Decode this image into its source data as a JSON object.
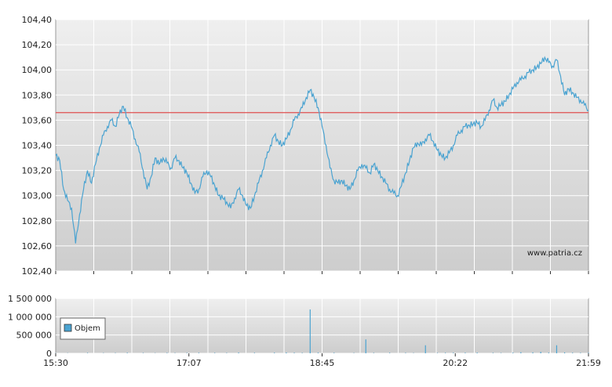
{
  "chart_data": [
    {
      "type": "line",
      "title": "",
      "xlabel": "",
      "ylabel": "",
      "ylim": [
        102.4,
        104.4
      ],
      "y_ticks": [
        "104,40",
        "104,20",
        "104,00",
        "103,80",
        "103,60",
        "103,40",
        "103,20",
        "103,00",
        "102,80",
        "102,60",
        "102,40"
      ],
      "reference_line": {
        "value": 103.66,
        "color": "#e05050"
      },
      "watermark": "www.patria.cz",
      "series": [
        {
          "color": "#4aa3d1",
          "points": [
            [
              0,
              103.32
            ],
            [
              1,
              103.28
            ],
            [
              2,
              103.05
            ],
            [
              3,
              102.96
            ],
            [
              4,
              102.9
            ],
            [
              5,
              102.62
            ],
            [
              6,
              102.85
            ],
            [
              7,
              103.05
            ],
            [
              8,
              103.2
            ],
            [
              9,
              103.1
            ],
            [
              10,
              103.25
            ],
            [
              11,
              103.38
            ],
            [
              12,
              103.48
            ],
            [
              13,
              103.55
            ],
            [
              14,
              103.6
            ],
            [
              15,
              103.55
            ],
            [
              16,
              103.65
            ],
            [
              17,
              103.71
            ],
            [
              18,
              103.62
            ],
            [
              19,
              103.55
            ],
            [
              20,
              103.45
            ],
            [
              21,
              103.35
            ],
            [
              22,
              103.2
            ],
            [
              23,
              103.05
            ],
            [
              24,
              103.15
            ],
            [
              25,
              103.3
            ],
            [
              26,
              103.25
            ],
            [
              27,
              103.3
            ],
            [
              28,
              103.26
            ],
            [
              29,
              103.22
            ],
            [
              30,
              103.3
            ],
            [
              31,
              103.28
            ],
            [
              32,
              103.22
            ],
            [
              33,
              103.18
            ],
            [
              34,
              103.1
            ],
            [
              35,
              103.02
            ],
            [
              36,
              103.05
            ],
            [
              37,
              103.15
            ],
            [
              38,
              103.2
            ],
            [
              39,
              103.15
            ],
            [
              40,
              103.08
            ],
            [
              41,
              103.0
            ],
            [
              42,
              102.98
            ],
            [
              43,
              102.95
            ],
            [
              44,
              102.9
            ],
            [
              45,
              102.98
            ],
            [
              46,
              103.05
            ],
            [
              47,
              103.0
            ],
            [
              48,
              102.92
            ],
            [
              49,
              102.9
            ],
            [
              50,
              103.0
            ],
            [
              51,
              103.1
            ],
            [
              52,
              103.2
            ],
            [
              53,
              103.3
            ],
            [
              54,
              103.4
            ],
            [
              55,
              103.48
            ],
            [
              56,
              103.43
            ],
            [
              57,
              103.4
            ],
            [
              58,
              103.45
            ],
            [
              59,
              103.52
            ],
            [
              60,
              103.6
            ],
            [
              61,
              103.65
            ],
            [
              62,
              103.7
            ],
            [
              63,
              103.78
            ],
            [
              64,
              103.84
            ],
            [
              65,
              103.78
            ],
            [
              66,
              103.7
            ],
            [
              67,
              103.55
            ],
            [
              68,
              103.4
            ],
            [
              69,
              103.22
            ],
            [
              70,
              103.12
            ],
            [
              71,
              103.1
            ],
            [
              72,
              103.12
            ],
            [
              73,
              103.08
            ],
            [
              74,
              103.05
            ],
            [
              75,
              103.12
            ],
            [
              76,
              103.2
            ],
            [
              77,
              103.25
            ],
            [
              78,
              103.22
            ],
            [
              79,
              103.18
            ],
            [
              80,
              103.25
            ],
            [
              81,
              103.2
            ],
            [
              82,
              103.15
            ],
            [
              83,
              103.1
            ],
            [
              84,
              103.05
            ],
            [
              85,
              103.02
            ],
            [
              86,
              103.0
            ],
            [
              87,
              103.08
            ],
            [
              88,
              103.18
            ],
            [
              89,
              103.28
            ],
            [
              90,
              103.38
            ],
            [
              91,
              103.42
            ],
            [
              92,
              103.4
            ],
            [
              93,
              103.45
            ],
            [
              94,
              103.48
            ],
            [
              95,
              103.43
            ],
            [
              96,
              103.36
            ],
            [
              97,
              103.32
            ],
            [
              98,
              103.3
            ],
            [
              99,
              103.34
            ],
            [
              100,
              103.4
            ],
            [
              101,
              103.48
            ],
            [
              102,
              103.52
            ],
            [
              103,
              103.55
            ],
            [
              104,
              103.56
            ],
            [
              105,
              103.57
            ],
            [
              106,
              103.58
            ],
            [
              107,
              103.55
            ],
            [
              108,
              103.6
            ],
            [
              109,
              103.68
            ],
            [
              110,
              103.76
            ],
            [
              111,
              103.7
            ],
            [
              112,
              103.72
            ],
            [
              113,
              103.75
            ],
            [
              114,
              103.8
            ],
            [
              115,
              103.85
            ],
            [
              116,
              103.9
            ],
            [
              117,
              103.92
            ],
            [
              118,
              103.95
            ],
            [
              119,
              103.98
            ],
            [
              120,
              104.0
            ],
            [
              121,
              104.02
            ],
            [
              122,
              104.05
            ],
            [
              123,
              104.1
            ],
            [
              124,
              104.06
            ],
            [
              125,
              104.03
            ],
            [
              126,
              104.08
            ],
            [
              127,
              103.95
            ],
            [
              128,
              103.8
            ],
            [
              129,
              103.85
            ],
            [
              130,
              103.82
            ],
            [
              131,
              103.78
            ],
            [
              132,
              103.76
            ],
            [
              133,
              103.72
            ],
            [
              134,
              103.68
            ]
          ]
        }
      ]
    },
    {
      "type": "bar",
      "title": "",
      "xlabel": "",
      "ylabel": "",
      "ylim": [
        0,
        1500000
      ],
      "y_ticks": [
        "1 500 000",
        "1 000 000",
        "500 000",
        "0"
      ],
      "legend": {
        "label": "Objem",
        "placement": "left"
      },
      "x_ticks": [
        "15:30",
        "17:07",
        "18:45",
        "20:22",
        "21:59"
      ],
      "color": "#4aa3d1",
      "bars": [
        [
          0,
          5000
        ],
        [
          3,
          6000
        ],
        [
          8,
          12000
        ],
        [
          12,
          8000
        ],
        [
          15,
          9000
        ],
        [
          18,
          15000
        ],
        [
          22,
          10000
        ],
        [
          25,
          7000
        ],
        [
          28,
          12000
        ],
        [
          30,
          9000
        ],
        [
          33,
          11000
        ],
        [
          36,
          14000
        ],
        [
          40,
          12000
        ],
        [
          43,
          10000
        ],
        [
          46,
          20000
        ],
        [
          50,
          13000
        ],
        [
          55,
          16000
        ],
        [
          58,
          22000
        ],
        [
          60,
          15000
        ],
        [
          62,
          12000
        ],
        [
          64,
          1200000
        ],
        [
          66,
          18000
        ],
        [
          70,
          14000
        ],
        [
          75,
          9000
        ],
        [
          78,
          380000
        ],
        [
          80,
          11000
        ],
        [
          84,
          15000
        ],
        [
          88,
          12000
        ],
        [
          90,
          8000
        ],
        [
          93,
          220000
        ],
        [
          96,
          10000
        ],
        [
          98,
          13000
        ],
        [
          100,
          14000
        ],
        [
          103,
          16000
        ],
        [
          106,
          20000
        ],
        [
          110,
          12000
        ],
        [
          112,
          9000
        ],
        [
          115,
          18000
        ],
        [
          117,
          30000
        ],
        [
          120,
          25000
        ],
        [
          122,
          40000
        ],
        [
          124,
          18000
        ],
        [
          126,
          220000
        ],
        [
          128,
          24000
        ],
        [
          130,
          16000
        ],
        [
          132,
          12000
        ],
        [
          134,
          15000
        ]
      ]
    }
  ]
}
